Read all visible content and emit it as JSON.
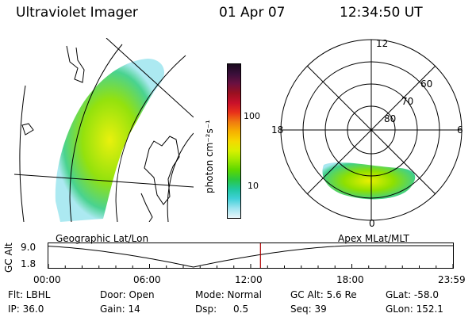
{
  "header": {
    "instrument": "Ultraviolet Imager",
    "date": "01 Apr 07",
    "time": "12:34:50 UT"
  },
  "colorbar": {
    "unit_label": "photon cm⁻²s⁻¹",
    "ticks": [
      "100",
      "10"
    ],
    "colors": [
      "#1a0a1e",
      "#3a0f3a",
      "#6a1040",
      "#9a1020",
      "#c8102a",
      "#e8301a",
      "#f07a10",
      "#f7b000",
      "#f5d800",
      "#d8f000",
      "#9ee800",
      "#5cd800",
      "#2ac840",
      "#20c8a0",
      "#40d0d8",
      "#a0e4f0",
      "#e8f6fa"
    ]
  },
  "polar_plot": {
    "labels": {
      "top": "12",
      "left": "18",
      "right": "6",
      "bottom": "0"
    },
    "rings": [
      "60",
      "70",
      "80"
    ]
  },
  "left_labels": {
    "projection_left": "Geographic Lat/Lon",
    "projection_right": "Apex MLat/MLT"
  },
  "timeline": {
    "ylabel": "GC Alt",
    "ymax": "9.0",
    "ymin": "1.8",
    "xticks": [
      "00:00",
      "06:00",
      "12:00",
      "18:00",
      "23:59"
    ],
    "current_time_marker_hours": 12.58,
    "marker_color": "#b00000"
  },
  "status": {
    "flt": "Flt: LBHL",
    "door": "Door: Open",
    "mode": "Mode: Normal",
    "gc_alt": "GC Alt: 5.6 Re",
    "glat": "GLat: -58.0",
    "ip": "IP: 36.0",
    "gain": "Gain: 14",
    "dsp_label": "Dsp:",
    "dsp_value": "0.5",
    "seq": "Seq: 39",
    "glon": "GLon: 152.1"
  }
}
